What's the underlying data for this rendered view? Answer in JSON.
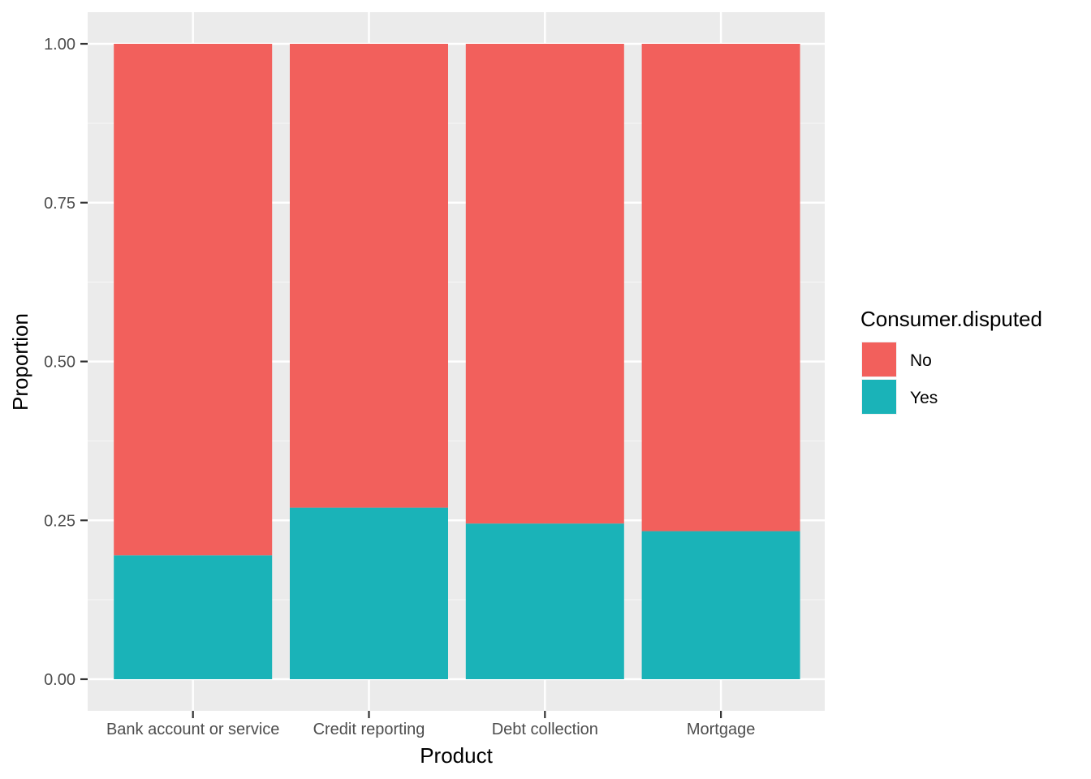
{
  "chart_data": {
    "type": "bar",
    "stacked": true,
    "categories": [
      "Bank account or service",
      "Credit reporting",
      "Debt collection",
      "Mortgage"
    ],
    "series": [
      {
        "name": "No",
        "color": "#F2605C",
        "values": [
          0.805,
          0.73,
          0.755,
          0.767
        ]
      },
      {
        "name": "Yes",
        "color": "#1AB3B8",
        "values": [
          0.195,
          0.27,
          0.245,
          0.233
        ]
      }
    ],
    "xlabel": "Product",
    "ylabel": "Proportion",
    "ylim": [
      0,
      1
    ],
    "yticks": [
      "0.00",
      "0.25",
      "0.50",
      "0.75",
      "1.00"
    ],
    "ytick_values": [
      0,
      0.25,
      0.5,
      0.75,
      1.0
    ],
    "legend": {
      "title": "Consumer.disputed",
      "placement": "right"
    },
    "panel_background": "#EBEBEB",
    "grid": true
  }
}
